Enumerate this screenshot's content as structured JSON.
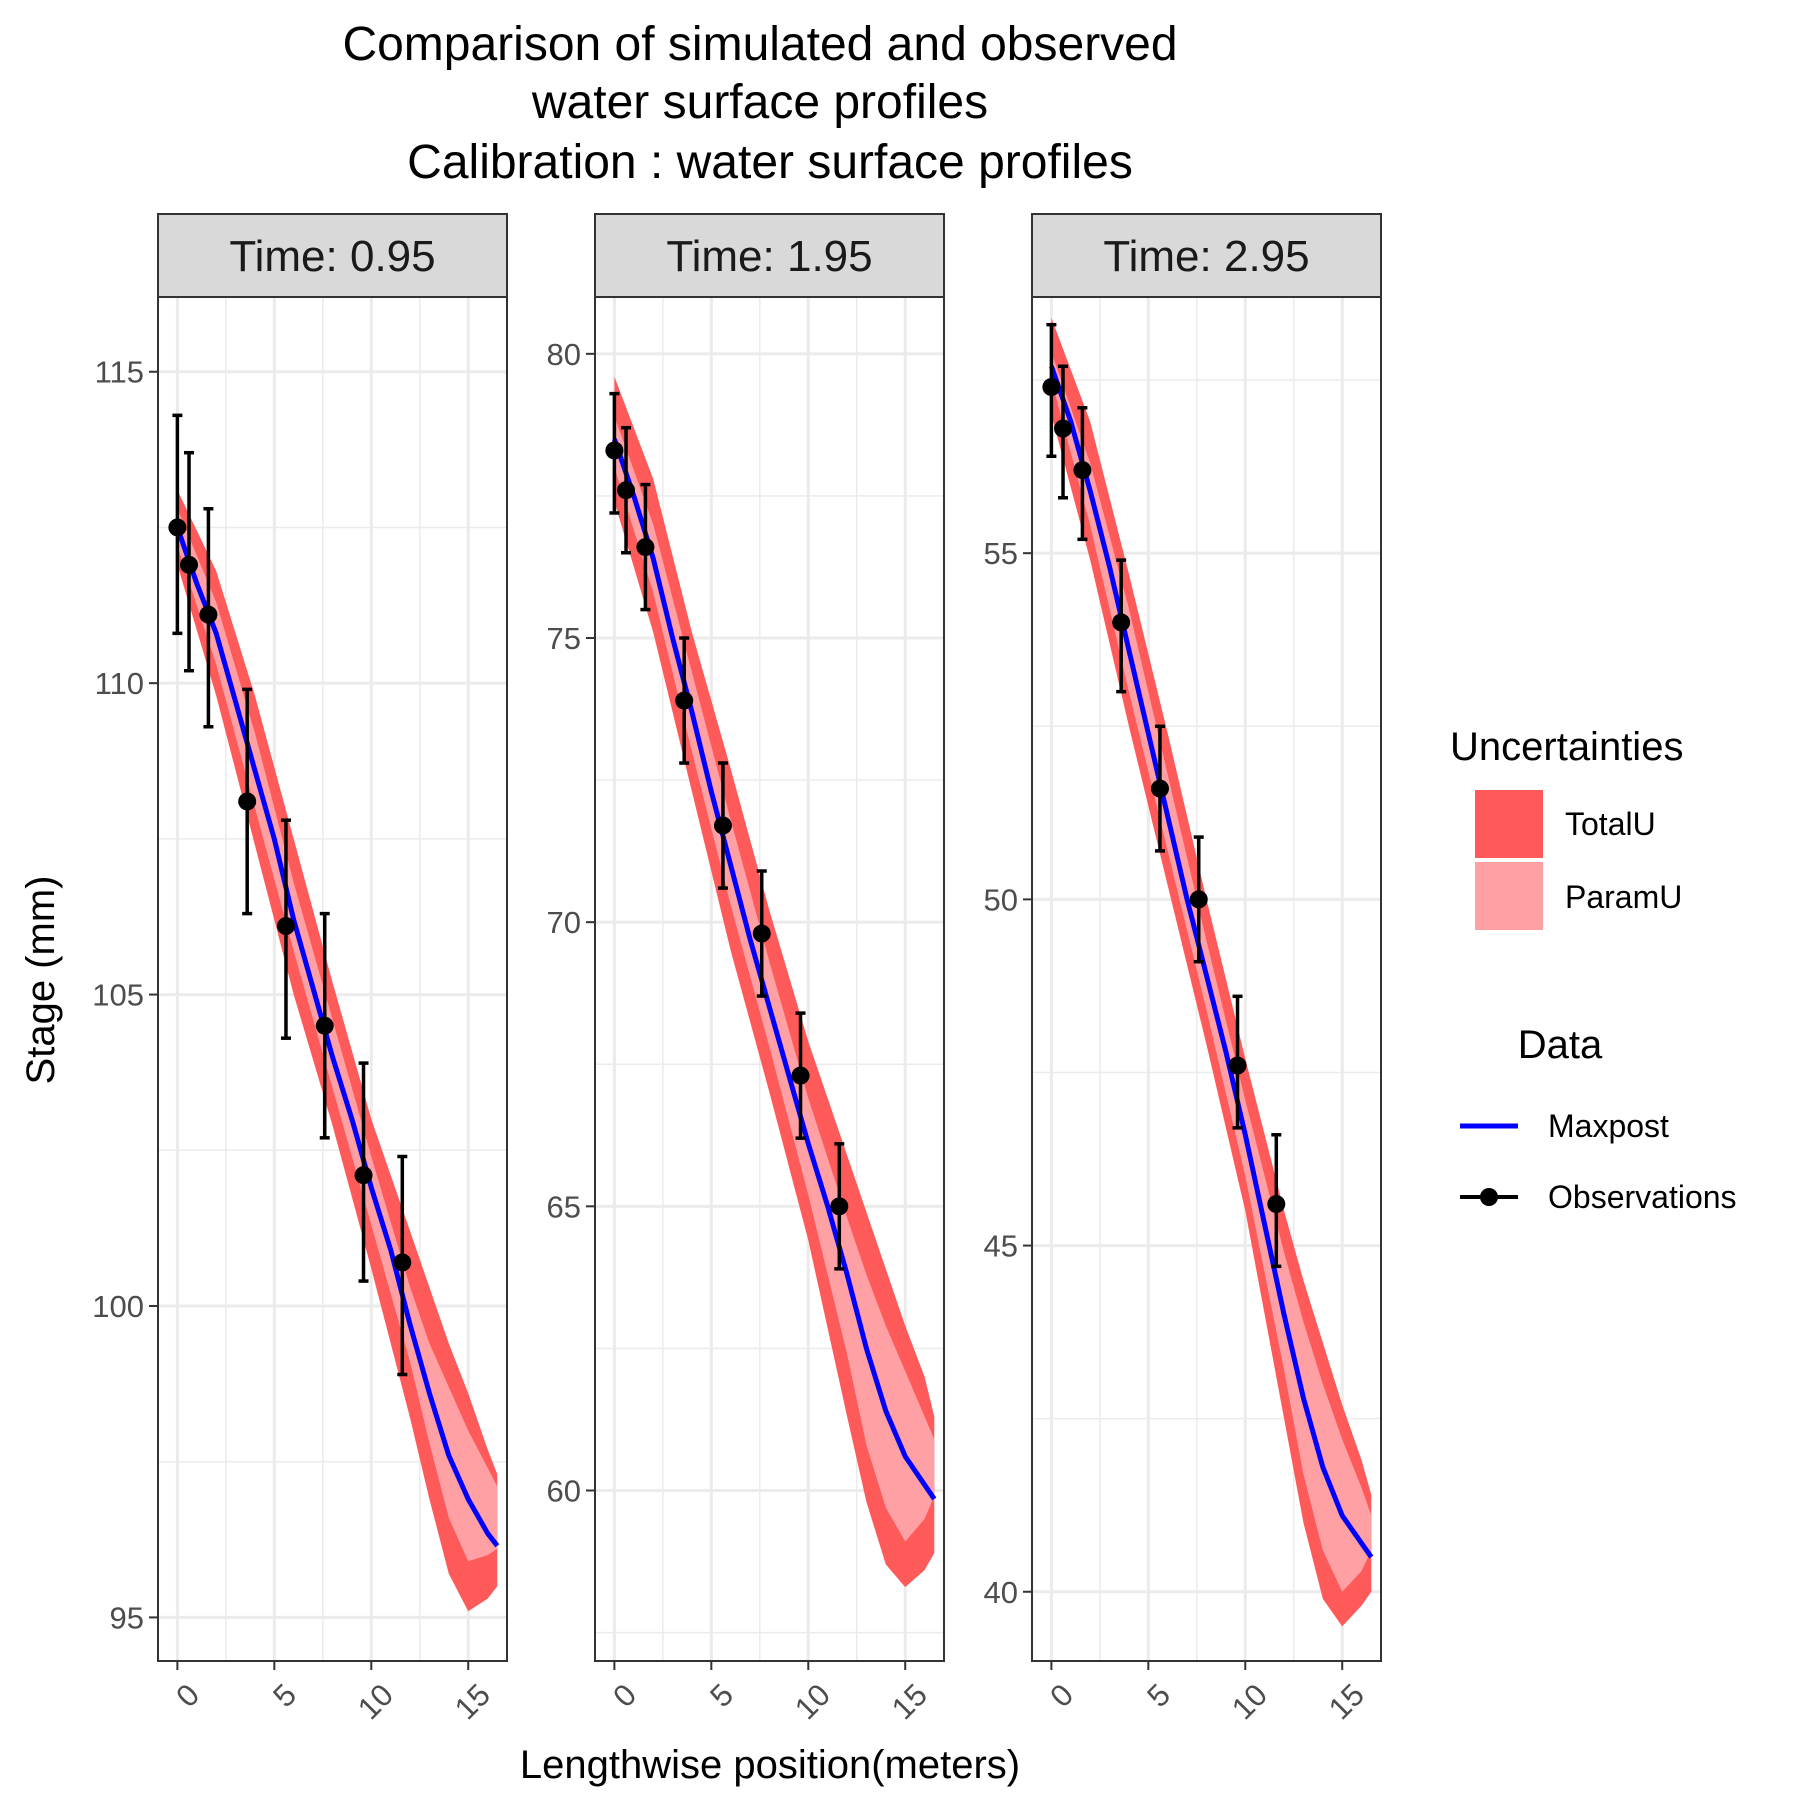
{
  "chart_data": {
    "type": "line",
    "title_lines": [
      "Comparison of simulated and observed",
      "water surface profiles",
      "Calibration : water surface profiles"
    ],
    "xlabel": "Lengthwise position(meters)",
    "ylabel": "Stage (mm)",
    "colors": {
      "total_band": "#ff5a5a",
      "param_band": "#ffa0a5",
      "maxpost": "#0000ff",
      "observations": "#000000",
      "grid": "#ebebeb",
      "strip_fill": "#d9d9d9"
    },
    "legend": {
      "placement": "right",
      "uncertainties_title": "Uncertainties",
      "total_label": "TotalU",
      "param_label": "ParamU",
      "data_title": "Data",
      "maxpost_label": "Maxpost",
      "observations_label": "Observations"
    },
    "panels": [
      {
        "strip": "Time:  0.95",
        "xlim": [
          -1,
          17
        ],
        "ylim": [
          94.3,
          116.2
        ],
        "x_ticks": [
          0,
          5,
          10,
          15
        ],
        "x_tick_labels": [
          "0",
          "5",
          "10",
          "15"
        ],
        "y_ticks": [
          95,
          100,
          105,
          110,
          115
        ],
        "y_tick_labels": [
          "95",
          "100",
          "105",
          "110",
          "115"
        ],
        "maxpost": {
          "x": [
            0,
            1,
            2,
            3,
            4,
            5,
            6,
            7,
            8,
            9,
            10,
            11,
            12,
            13,
            14,
            15,
            16,
            16.5
          ],
          "y": [
            112.5,
            111.6,
            110.8,
            109.7,
            108.6,
            107.5,
            106.2,
            105.1,
            104.0,
            103.0,
            101.9,
            100.9,
            99.7,
            98.6,
            97.6,
            96.9,
            96.35,
            96.15
          ]
        },
        "param_band": {
          "x": [
            0,
            2,
            4,
            6,
            8,
            10,
            12,
            13,
            14,
            15,
            16,
            16.5
          ],
          "lower": [
            112.2,
            110.3,
            108.0,
            105.7,
            103.5,
            101.3,
            99.1,
            97.8,
            96.6,
            95.9,
            96.0,
            96.1
          ],
          "upper": [
            112.8,
            111.3,
            109.2,
            106.8,
            104.6,
            102.4,
            100.3,
            99.4,
            98.7,
            98.0,
            97.4,
            97.1
          ]
        },
        "total_band": {
          "x": [
            0,
            2,
            4,
            6,
            8,
            10,
            12,
            13,
            14,
            15,
            16,
            16.5
          ],
          "lower": [
            111.9,
            109.8,
            107.4,
            105.0,
            102.9,
            100.6,
            98.2,
            96.9,
            95.7,
            95.1,
            95.3,
            95.5
          ],
          "upper": [
            113.1,
            111.8,
            109.8,
            107.5,
            105.2,
            103.0,
            101.2,
            100.3,
            99.4,
            98.6,
            97.7,
            97.3
          ]
        },
        "observations": {
          "x": [
            0,
            0.6,
            1.6,
            3.6,
            5.6,
            7.6,
            9.6,
            11.6
          ],
          "y": [
            112.5,
            111.9,
            111.1,
            108.1,
            106.1,
            104.5,
            102.1,
            100.7
          ],
          "err_low": [
            110.8,
            110.2,
            109.3,
            106.3,
            104.3,
            102.7,
            100.4,
            98.9
          ],
          "err_high": [
            114.3,
            113.7,
            112.8,
            109.9,
            107.8,
            106.3,
            103.9,
            102.4
          ]
        }
      },
      {
        "strip": "Time:  1.95",
        "xlim": [
          -1,
          17
        ],
        "ylim": [
          57.0,
          81.0
        ],
        "x_ticks": [
          0,
          5,
          10,
          15
        ],
        "x_tick_labels": [
          "0",
          "5",
          "10",
          "15"
        ],
        "y_ticks": [
          60,
          65,
          70,
          75,
          80
        ],
        "y_tick_labels": [
          "60",
          "65",
          "70",
          "75",
          "80"
        ],
        "maxpost": {
          "x": [
            0,
            1,
            2,
            3,
            4,
            5,
            6,
            7,
            8,
            9,
            10,
            11,
            12,
            13,
            14,
            15,
            16,
            16.5
          ],
          "y": [
            78.5,
            77.5,
            76.4,
            75.0,
            73.7,
            72.3,
            71.0,
            69.7,
            68.5,
            67.3,
            66.1,
            65.0,
            63.8,
            62.5,
            61.4,
            60.6,
            60.1,
            59.85
          ]
        },
        "param_band": {
          "x": [
            0,
            2,
            4,
            6,
            8,
            10,
            12,
            13,
            14,
            15,
            16,
            16.5
          ],
          "lower": [
            78.0,
            75.8,
            73.0,
            70.3,
            67.8,
            65.2,
            62.4,
            60.8,
            59.7,
            59.1,
            59.5,
            59.9
          ],
          "upper": [
            78.9,
            77.0,
            74.4,
            71.8,
            69.3,
            66.9,
            64.8,
            63.8,
            62.9,
            62.1,
            61.3,
            60.9
          ]
        },
        "total_band": {
          "x": [
            0,
            2,
            4,
            6,
            8,
            10,
            12,
            13,
            14,
            15,
            16,
            16.5
          ],
          "lower": [
            77.4,
            75.1,
            72.3,
            69.5,
            67.0,
            64.4,
            61.3,
            59.8,
            58.7,
            58.3,
            58.6,
            58.9
          ],
          "upper": [
            79.6,
            77.8,
            75.1,
            72.7,
            70.2,
            67.9,
            65.9,
            64.9,
            63.9,
            62.9,
            62.0,
            61.3
          ]
        },
        "observations": {
          "x": [
            0,
            0.6,
            1.6,
            3.6,
            5.6,
            7.6,
            9.6,
            11.6
          ],
          "y": [
            78.3,
            77.6,
            76.6,
            73.9,
            71.7,
            69.8,
            67.3,
            65.0
          ],
          "err_low": [
            77.2,
            76.5,
            75.5,
            72.8,
            70.6,
            68.7,
            66.2,
            63.9
          ],
          "err_high": [
            79.3,
            78.7,
            77.7,
            75.0,
            72.8,
            70.9,
            68.4,
            66.1
          ]
        }
      },
      {
        "strip": "Time:  2.95",
        "xlim": [
          -1,
          17
        ],
        "ylim": [
          39.0,
          58.7
        ],
        "x_ticks": [
          0,
          5,
          10,
          15
        ],
        "x_tick_labels": [
          "0",
          "5",
          "10",
          "15"
        ],
        "y_ticks": [
          40,
          45,
          50,
          55
        ],
        "y_tick_labels": [
          "40",
          "45",
          "50",
          "55"
        ],
        "maxpost": {
          "x": [
            0,
            1,
            2,
            3,
            4,
            5,
            6,
            7,
            8,
            9,
            10,
            11,
            12,
            13,
            14,
            15,
            16,
            16.5
          ],
          "y": [
            57.7,
            56.9,
            55.9,
            54.8,
            53.6,
            52.4,
            51.2,
            50.0,
            48.9,
            47.8,
            46.6,
            45.3,
            44.0,
            42.8,
            41.8,
            41.1,
            40.7,
            40.5
          ]
        },
        "param_band": {
          "x": [
            0,
            2,
            4,
            6,
            8,
            10,
            12,
            13,
            14,
            15,
            16,
            16.5
          ],
          "lower": [
            57.5,
            55.4,
            53.0,
            50.7,
            48.4,
            46.0,
            43.2,
            41.7,
            40.6,
            40.0,
            40.3,
            40.6
          ],
          "upper": [
            57.9,
            56.3,
            54.2,
            51.8,
            49.4,
            47.1,
            44.9,
            43.9,
            43.0,
            42.2,
            41.5,
            41.1
          ]
        },
        "total_band": {
          "x": [
            0,
            2,
            4,
            6,
            8,
            10,
            12,
            13,
            14,
            15,
            16,
            16.5
          ],
          "lower": [
            57.0,
            54.9,
            52.5,
            50.2,
            47.9,
            45.5,
            42.5,
            41.0,
            39.9,
            39.5,
            39.8,
            40.0
          ],
          "upper": [
            58.4,
            56.9,
            54.7,
            52.4,
            50.0,
            47.7,
            45.5,
            44.5,
            43.6,
            42.7,
            41.9,
            41.4
          ]
        },
        "observations": {
          "x": [
            0,
            0.6,
            1.6,
            3.6,
            5.6,
            7.6,
            9.6,
            11.6
          ],
          "y": [
            57.4,
            56.8,
            56.2,
            54.0,
            51.6,
            50.0,
            47.6,
            45.6
          ],
          "err_low": [
            56.4,
            55.8,
            55.2,
            53.0,
            50.7,
            49.1,
            46.7,
            44.7
          ],
          "err_high": [
            58.3,
            57.7,
            57.1,
            54.9,
            52.5,
            50.9,
            48.6,
            46.6
          ]
        }
      }
    ]
  }
}
